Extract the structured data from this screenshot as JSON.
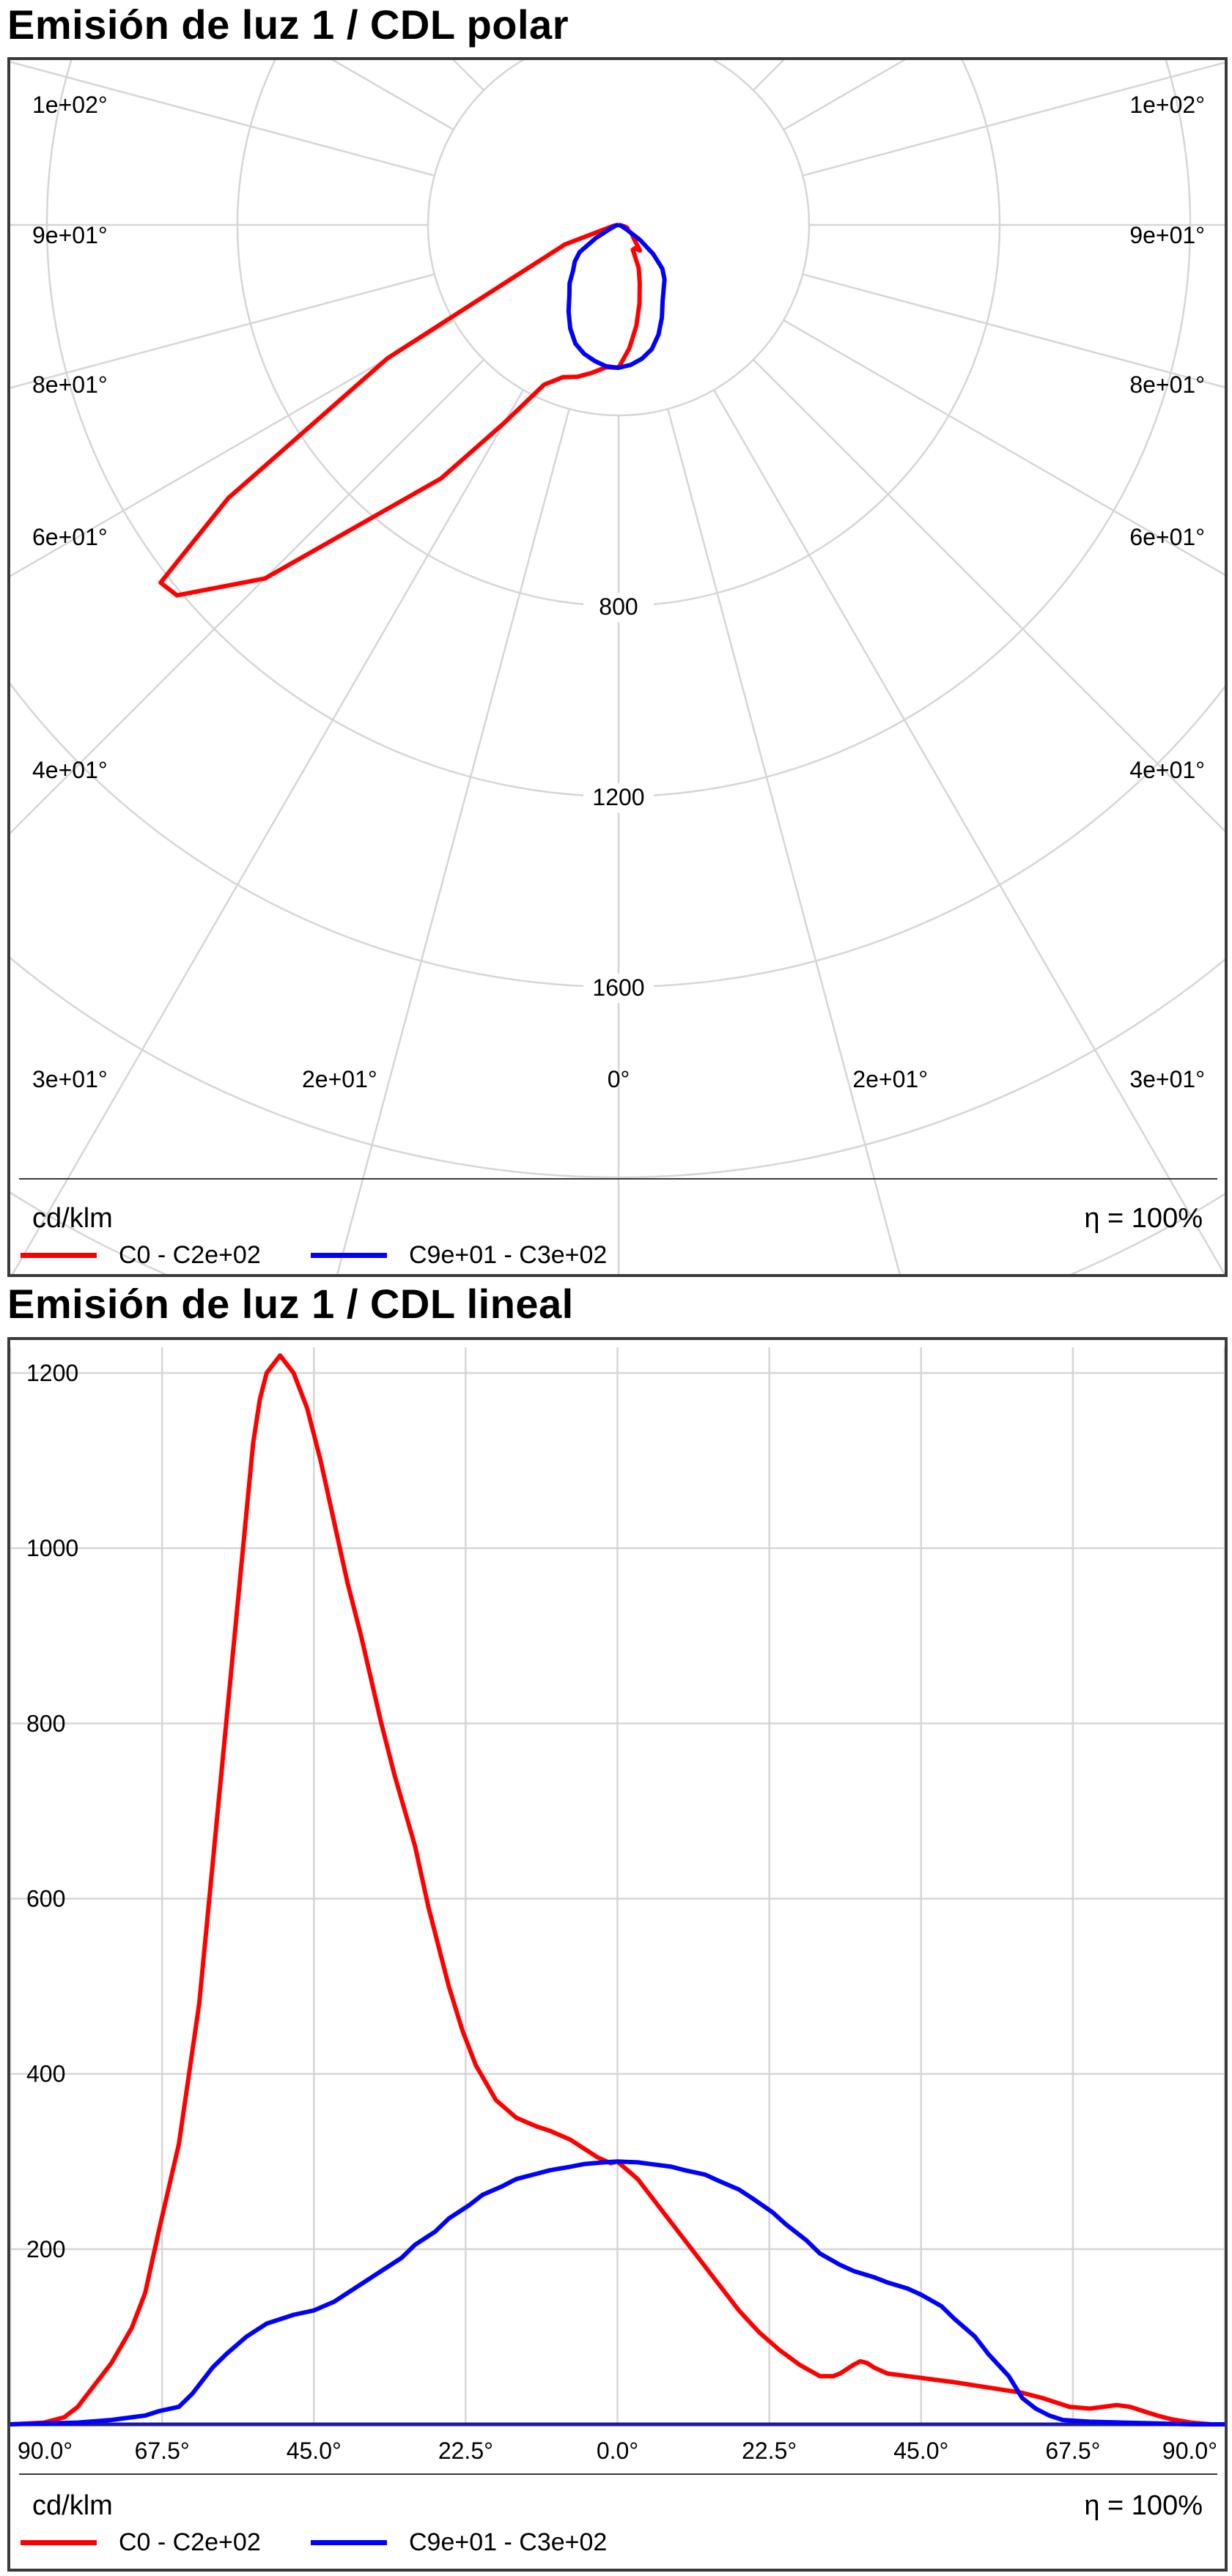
{
  "chart_data": [
    {
      "type": "polar",
      "title": "Emisión de luz 1 / CDL polar",
      "unit_label": "cd/klm",
      "efficiency_label": "η = 100%",
      "radial_tick_labels": [
        "800",
        "1200",
        "1600"
      ],
      "angle_labels_left": [
        "1e+02°",
        "9e+01°",
        "8e+01°",
        "6e+01°",
        "4e+01°",
        "3e+01°",
        "2e+01°"
      ],
      "angle_labels_bottom_center": "0°",
      "angle_labels_right": [
        "1e+02°",
        "9e+01°",
        "8e+01°",
        "6e+01°",
        "4e+01°",
        "3e+01°",
        "2e+01°"
      ],
      "series": [
        {
          "name": "C0 - C2e+02",
          "color": "#ff0000",
          "angles_deg": [
            -90,
            -80,
            -70,
            -60,
            -55,
            -52,
            -50,
            -45,
            -40,
            -35,
            -30,
            -25,
            -20,
            -15,
            -10,
            -5,
            0,
            5,
            10,
            15,
            20,
            25,
            30,
            35,
            40,
            45,
            50,
            55,
            60,
            65,
            70,
            75,
            80,
            85,
            90
          ],
          "values": [
            0,
            10,
            120,
            560,
            1000,
            1220,
            1210,
            1050,
            800,
            650,
            480,
            370,
            340,
            330,
            315,
            300,
            300,
            260,
            215,
            170,
            130,
            100,
            60,
            60,
            70,
            50,
            40,
            35,
            25,
            20,
            20,
            15,
            5,
            0,
            0
          ]
        },
        {
          "name": "C9e+01 - C3e+02",
          "color": "#0000ff",
          "angles_deg": [
            -90,
            -80,
            -70,
            -65,
            -60,
            -55,
            -50,
            -45,
            -40,
            -35,
            -30,
            -25,
            -20,
            -15,
            -10,
            -5,
            0,
            5,
            10,
            15,
            20,
            25,
            30,
            35,
            40,
            45,
            50,
            55,
            60,
            65,
            70,
            75,
            80,
            85,
            90
          ],
          "values": [
            0,
            5,
            10,
            20,
            55,
            100,
            120,
            135,
            160,
            180,
            210,
            240,
            265,
            280,
            290,
            298,
            300,
            295,
            285,
            270,
            245,
            215,
            185,
            165,
            150,
            130,
            95,
            55,
            20,
            10,
            5,
            3,
            0,
            0,
            0
          ]
        }
      ]
    },
    {
      "type": "line",
      "title": "Emisión de luz 1 / CDL lineal",
      "unit_label": "cd/klm",
      "efficiency_label": "η = 100%",
      "x_tick_labels": [
        "90.0°",
        "67.5°",
        "45.0°",
        "22.5°",
        "0.0°",
        "22.5°",
        "45.0°",
        "67.5°",
        "90.0°"
      ],
      "x_ticks": [
        -90,
        -67.5,
        -45,
        -22.5,
        0,
        22.5,
        45,
        67.5,
        90
      ],
      "y_tick_labels": [
        "200",
        "400",
        "600",
        "800",
        "1000",
        "1200"
      ],
      "y_ticks": [
        200,
        400,
        600,
        800,
        1000,
        1200
      ],
      "xlim": [
        -90,
        90
      ],
      "ylim": [
        0,
        1200
      ],
      "grid": true,
      "series": [
        {
          "name": "C0 - C2e+02",
          "color": "#ff0000",
          "x": [
            -90,
            -85,
            -82,
            -80,
            -78,
            -75,
            -72,
            -70,
            -68,
            -65,
            -62,
            -60,
            -58,
            -56,
            -55,
            -54,
            -53,
            -52,
            -51,
            -50,
            -48,
            -46,
            -44,
            -42,
            -40,
            -38,
            -35,
            -33,
            -30,
            -28,
            -25,
            -23,
            -21,
            -18,
            -15,
            -12,
            -10,
            -7,
            -5,
            -3,
            -1,
            0,
            3,
            6,
            9,
            12,
            15,
            18,
            21,
            24,
            27,
            30,
            32,
            33,
            35,
            36,
            37,
            38,
            40,
            43,
            46,
            50,
            55,
            60,
            63,
            67,
            70,
            72,
            74,
            76,
            78,
            80,
            82,
            85,
            88,
            90
          ],
          "y": [
            0,
            2,
            8,
            20,
            40,
            70,
            110,
            150,
            220,
            320,
            480,
            640,
            800,
            960,
            1040,
            1120,
            1170,
            1200,
            1210,
            1220,
            1200,
            1160,
            1100,
            1030,
            960,
            900,
            800,
            740,
            660,
            590,
            500,
            450,
            410,
            370,
            350,
            340,
            335,
            325,
            315,
            305,
            298,
            300,
            280,
            250,
            220,
            190,
            160,
            130,
            105,
            85,
            68,
            55,
            55,
            58,
            68,
            72,
            70,
            65,
            58,
            55,
            52,
            48,
            42,
            36,
            30,
            20,
            18,
            20,
            22,
            20,
            15,
            10,
            6,
            2,
            0,
            0
          ]
        },
        {
          "name": "C9e+01 - C3e+02",
          "color": "#0000ff",
          "x": [
            -90,
            -80,
            -75,
            -72,
            -70,
            -68,
            -65,
            -63,
            -61,
            -60,
            -58,
            -55,
            -52,
            -50,
            -48,
            -45,
            -42,
            -40,
            -37,
            -35,
            -32,
            -30,
            -27,
            -25,
            -22,
            -20,
            -17,
            -15,
            -12,
            -10,
            -7,
            -5,
            -2,
            0,
            3,
            5,
            8,
            10,
            13,
            15,
            18,
            20,
            23,
            25,
            28,
            30,
            33,
            35,
            38,
            40,
            43,
            45,
            48,
            50,
            53,
            55,
            58,
            60,
            62,
            64,
            66,
            68,
            70,
            75,
            80,
            85,
            90
          ],
          "y": [
            0,
            2,
            5,
            8,
            10,
            15,
            20,
            35,
            55,
            65,
            80,
            100,
            115,
            120,
            125,
            130,
            140,
            150,
            165,
            175,
            190,
            205,
            220,
            235,
            250,
            262,
            272,
            280,
            286,
            290,
            294,
            297,
            299,
            300,
            299,
            297,
            294,
            290,
            285,
            278,
            268,
            258,
            242,
            228,
            210,
            195,
            182,
            175,
            168,
            162,
            155,
            148,
            135,
            120,
            100,
            80,
            55,
            30,
            18,
            10,
            5,
            4,
            3,
            2,
            1,
            0,
            0
          ]
        }
      ]
    }
  ]
}
